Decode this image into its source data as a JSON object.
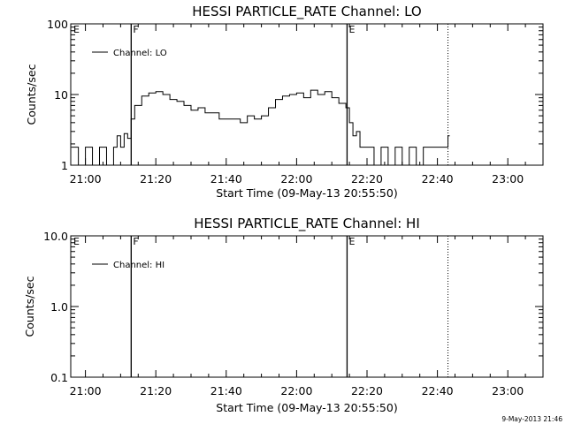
{
  "chart_data": [
    {
      "type": "line",
      "title": "HESSI PARTICLE_RATE Channel: LO",
      "xlabel": "Start Time (09-May-13 20:55:50)",
      "ylabel": "Counts/sec",
      "yscale": "log",
      "ylim": [
        1,
        100
      ],
      "xlim": [
        "20:55:50",
        "23:10:00"
      ],
      "x_ticks": [
        "21:00",
        "21:20",
        "21:40",
        "22:00",
        "22:20",
        "22:40",
        "23:00"
      ],
      "y_ticks": [
        "1",
        "10",
        "100"
      ],
      "legend": {
        "placement": "top-left",
        "entries": [
          "Channel: LO"
        ]
      },
      "markers": [
        {
          "label": "E",
          "time": "20:55:50",
          "style": "none"
        },
        {
          "label": "F",
          "time": "21:13:00",
          "style": "solid"
        },
        {
          "label": "E",
          "time": "22:14:20",
          "style": "solid"
        },
        {
          "label": "",
          "time": "22:43:00",
          "style": "dotted"
        }
      ],
      "series": [
        {
          "name": "Channel: LO",
          "x": [
            "20:56",
            "20:58",
            "21:00",
            "21:02",
            "21:04",
            "21:06",
            "21:08",
            "21:09",
            "21:10",
            "21:11",
            "21:12",
            "21:13",
            "21:14",
            "21:16",
            "21:18",
            "21:20",
            "21:22",
            "21:24",
            "21:26",
            "21:28",
            "21:30",
            "21:32",
            "21:34",
            "21:36",
            "21:38",
            "21:40",
            "21:42",
            "21:44",
            "21:46",
            "21:48",
            "21:50",
            "21:52",
            "21:54",
            "21:56",
            "21:58",
            "22:00",
            "22:02",
            "22:04",
            "22:06",
            "22:08",
            "22:10",
            "22:12",
            "22:14",
            "22:15",
            "22:16",
            "22:17",
            "22:18",
            "22:20",
            "22:22",
            "22:24",
            "22:26",
            "22:28",
            "22:30",
            "22:32",
            "22:34",
            "22:36",
            "22:38",
            "22:40",
            "22:42",
            "22:43"
          ],
          "y": [
            1.8,
            1.0,
            1.8,
            1.0,
            1.8,
            1.0,
            1.8,
            2.6,
            1.8,
            2.8,
            2.4,
            4.5,
            7.0,
            9.5,
            10.5,
            11.0,
            10.0,
            8.5,
            8.0,
            7.0,
            6.0,
            6.5,
            5.5,
            5.5,
            4.5,
            4.5,
            4.5,
            4.0,
            5.0,
            4.5,
            5.0,
            6.5,
            8.5,
            9.5,
            10.0,
            10.5,
            9.0,
            11.5,
            10.0,
            11.0,
            9.0,
            7.5,
            6.5,
            4.0,
            2.6,
            3.0,
            1.8,
            1.8,
            1.0,
            1.8,
            1.0,
            1.8,
            1.0,
            1.8,
            1.0,
            1.8,
            1.8,
            1.8,
            1.8,
            2.6
          ]
        }
      ]
    },
    {
      "type": "line",
      "title": "HESSI PARTICLE_RATE Channel: HI",
      "xlabel": "Start Time (09-May-13 20:55:50)",
      "ylabel": "Counts/sec",
      "yscale": "log",
      "ylim": [
        0.1,
        10.0
      ],
      "xlim": [
        "20:55:50",
        "23:10:00"
      ],
      "x_ticks": [
        "21:00",
        "21:20",
        "21:40",
        "22:00",
        "22:20",
        "22:40",
        "23:00"
      ],
      "y_ticks": [
        "0.1",
        "1.0",
        "10.0"
      ],
      "legend": {
        "placement": "top-left",
        "entries": [
          "Channel: HI"
        ]
      },
      "markers": [
        {
          "label": "E",
          "time": "20:55:50",
          "style": "none"
        },
        {
          "label": "F",
          "time": "21:13:00",
          "style": "solid"
        },
        {
          "label": "E",
          "time": "22:14:20",
          "style": "solid"
        },
        {
          "label": "",
          "time": "22:43:00",
          "style": "dotted"
        }
      ],
      "series": [
        {
          "name": "Channel: HI",
          "x": [],
          "y": []
        }
      ]
    }
  ],
  "footer": {
    "stamp": "9-May-2013 21:46"
  }
}
